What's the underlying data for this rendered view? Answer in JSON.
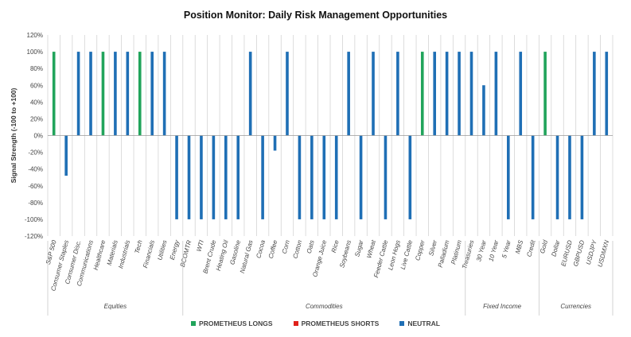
{
  "chart_data": {
    "type": "bar",
    "title": "Position Monitor: Daily Risk Management Opportunities",
    "ylabel": "Signal Strength (-100 to +100)",
    "xlabel": "",
    "ylim": [
      -120,
      120
    ],
    "yticks": [
      -120,
      -100,
      -80,
      -60,
      -40,
      -20,
      0,
      20,
      40,
      60,
      80,
      100,
      120
    ],
    "ytick_labels": [
      "-120%",
      "-100%",
      "-80%",
      "-60%",
      "-40%",
      "-20%",
      "0%",
      "20%",
      "40%",
      "60%",
      "80%",
      "100%",
      "120%"
    ],
    "grid": "vertical separators between categories",
    "legend_position": "bottom",
    "colors": {
      "longs": "#21A45B",
      "shorts": "#E0211B",
      "neutral": "#1F6FB5"
    },
    "categories": [
      "S&P 500",
      "Consumer Staples",
      "Consumer Disc.",
      "Communications",
      "Healthcare",
      "Materials",
      "Industrials",
      "Tech",
      "Financials",
      "Utilities",
      "Energy",
      "BCOMTR",
      "WTI",
      "Brent Crude",
      "Heating Oil",
      "Gasoline",
      "Natural Gas",
      "Cocoa",
      "Coffee",
      "Corn",
      "Cotton",
      "Oats",
      "Orange Juice",
      "Rice",
      "Soybeans",
      "Sugar",
      "Wheat",
      "Feeder Cattle",
      "Leon Hogs",
      "Live Cattle",
      "Copper",
      "Silver",
      "Palladium",
      "Platinum",
      "Treasuries",
      "30 Year",
      "10 Year",
      "5 Year",
      "MBS",
      "Credit",
      "Gold",
      "Dollar",
      "EURUSD",
      "GBPUSD",
      "USDJPY",
      "USDMXN"
    ],
    "groups": [
      {
        "label": "Equities",
        "start": 0,
        "end": 10
      },
      {
        "label": "Commodities",
        "start": 11,
        "end": 33
      },
      {
        "label": "Fixed Income",
        "start": 34,
        "end": 39
      },
      {
        "label": "Currencies",
        "start": 40,
        "end": 45
      }
    ],
    "series": [
      {
        "name": "PROMETHEUS LONGS",
        "color": "#21A45B",
        "values": [
          100,
          0,
          0,
          0,
          100,
          0,
          0,
          100,
          0,
          0,
          0,
          0,
          0,
          0,
          0,
          0,
          0,
          0,
          0,
          0,
          0,
          0,
          0,
          0,
          0,
          0,
          0,
          0,
          0,
          0,
          100,
          0,
          0,
          0,
          0,
          0,
          0,
          0,
          0,
          0,
          100,
          0,
          0,
          0,
          0,
          0
        ]
      },
      {
        "name": "PROMETHEUS SHORTS",
        "color": "#E0211B",
        "values": [
          0,
          0,
          0,
          0,
          0,
          0,
          0,
          0,
          0,
          0,
          0,
          0,
          0,
          0,
          0,
          0,
          0,
          0,
          0,
          0,
          0,
          0,
          0,
          0,
          0,
          0,
          0,
          0,
          0,
          0,
          0,
          0,
          0,
          0,
          0,
          0,
          0,
          0,
          0,
          0,
          0,
          0,
          0,
          0,
          0,
          0
        ]
      },
      {
        "name": "NEUTRAL",
        "color": "#1F6FB5",
        "values": [
          0,
          -48,
          100,
          100,
          0,
          100,
          100,
          0,
          100,
          100,
          -100,
          -100,
          -100,
          -100,
          -100,
          -100,
          100,
          -100,
          -18,
          100,
          -100,
          -100,
          -100,
          -100,
          100,
          -100,
          100,
          -100,
          100,
          -100,
          0,
          100,
          100,
          100,
          100,
          60,
          100,
          -100,
          100,
          -100,
          0,
          -100,
          -100,
          -100,
          100,
          100
        ]
      }
    ]
  }
}
